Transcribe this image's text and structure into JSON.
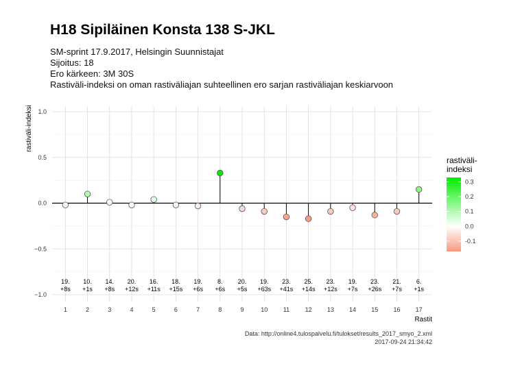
{
  "chart_data": {
    "type": "scatter",
    "title": "H18 Sipiläinen Konsta 138 S-JKL",
    "subtitle_lines": [
      "SM-sprint 17.9.2017, Helsingin Suunnistajat",
      "Sijoitus: 18",
      "Ero kärkeen: 3M 30S",
      "Rastiväli-indeksi on oman rastiväliajan suhteellinen ero sarjan rastiväliajan keskiarvoon"
    ],
    "xlabel": "Rastit",
    "ylabel": "rastiväli-indeksi",
    "ylim": [
      -1.0,
      1.0
    ],
    "yticks": [
      -1.0,
      -0.5,
      0.0,
      0.5,
      1.0
    ],
    "ytick_labels": [
      "−1.0",
      "−0.5",
      "0.0",
      "0.5",
      "1.0"
    ],
    "x": [
      1,
      2,
      3,
      4,
      5,
      6,
      7,
      8,
      9,
      10,
      11,
      12,
      13,
      14,
      15,
      16,
      17
    ],
    "values": [
      -0.02,
      0.1,
      0.01,
      -0.02,
      0.04,
      -0.02,
      -0.03,
      0.33,
      -0.06,
      -0.09,
      -0.15,
      -0.17,
      -0.09,
      -0.05,
      -0.13,
      -0.09,
      0.15
    ],
    "rank_labels": [
      "19.",
      "10.",
      "14.",
      "20.",
      "16.",
      "18.",
      "19.",
      "8.",
      "20.",
      "19.",
      "23.",
      "25.",
      "23.",
      "19.",
      "23.",
      "21.",
      "6."
    ],
    "diff_labels": [
      "+8s",
      "+1s",
      "+8s",
      "+12s",
      "+11s",
      "+15s",
      "+6s",
      "+6s",
      "+5s",
      "+63s",
      "+41s",
      "+14s",
      "+12s",
      "+7s",
      "+26s",
      "+7s",
      "+1s"
    ],
    "grid": true,
    "legend": {
      "title": "rastiväli-\nindeksi",
      "placement": "right",
      "ticks": [
        0.3,
        0.2,
        0.1,
        0.0,
        -0.1
      ],
      "tick_labels": [
        "0.3",
        "0.2",
        "0.1",
        "0.0",
        "-0.1"
      ],
      "range": [
        -0.17,
        0.33
      ],
      "colors": {
        "high": "#00ee00",
        "mid": "#ffffff",
        "low": "#f79a80"
      }
    },
    "caption_lines": [
      "Data: http://online4.tulospalvelu.fi/tulokset/results_2017_smyo_2.xml",
      "2017-09-24 21:34:42"
    ]
  }
}
